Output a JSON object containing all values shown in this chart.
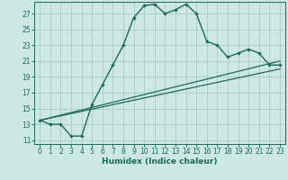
{
  "xlabel": "Humidex (Indice chaleur)",
  "xlim": [
    -0.5,
    23.5
  ],
  "ylim": [
    10.5,
    28.5
  ],
  "yticks": [
    11,
    13,
    15,
    17,
    19,
    21,
    23,
    25,
    27
  ],
  "xticks": [
    0,
    1,
    2,
    3,
    4,
    5,
    6,
    7,
    8,
    9,
    10,
    11,
    12,
    13,
    14,
    15,
    16,
    17,
    18,
    19,
    20,
    21,
    22,
    23
  ],
  "bg_color": "#cce8e0",
  "grid_color": "#aaccc4",
  "line_color": "#1a6a5a",
  "curve1_x": [
    0,
    1,
    2,
    3,
    4,
    5,
    6,
    7,
    8,
    9,
    10,
    11,
    12,
    13,
    14,
    15,
    16,
    17,
    18,
    19,
    20,
    21,
    22,
    23
  ],
  "curve1_y": [
    13.5,
    13.0,
    13.0,
    11.5,
    11.5,
    15.5,
    18.0,
    20.5,
    23.0,
    26.5,
    28.0,
    28.2,
    27.0,
    27.5,
    28.2,
    27.0,
    23.5,
    23.0,
    21.5,
    22.0,
    22.5,
    22.0,
    20.5,
    20.5
  ],
  "curve2_x": [
    0,
    23
  ],
  "curve2_y": [
    13.5,
    21.0
  ],
  "curve3_x": [
    0,
    23
  ],
  "curve3_y": [
    13.5,
    20.0
  ],
  "tick_color": "#1a6a5a",
  "tick_fontsize": 5.5,
  "xlabel_fontsize": 6.5
}
